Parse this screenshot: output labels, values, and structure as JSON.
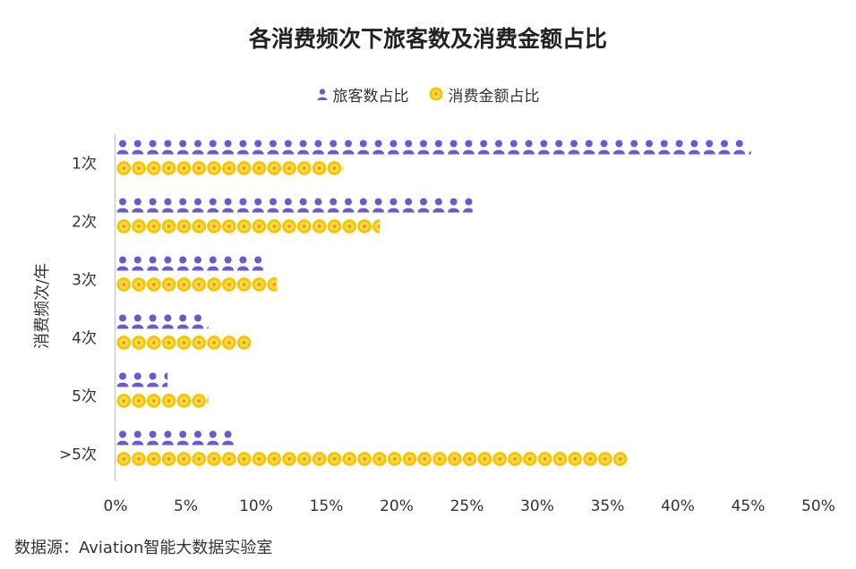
{
  "chart_data": {
    "type": "bar",
    "orientation": "horizontal",
    "style": "pictograph",
    "title": "各消费频次下旅客数及消费金额占比",
    "ylabel": "消费频次/年",
    "xlabel": "",
    "categories": [
      "1次",
      "2次",
      "3次",
      "4次",
      "5次",
      ">5次"
    ],
    "series": [
      {
        "name": "旅客数占比",
        "icon": "person-icon",
        "color": "#6a5acd",
        "values": [
          45.2,
          25.4,
          10.5,
          6.6,
          3.7,
          8.4
        ]
      },
      {
        "name": "消费金额占比",
        "icon": "coin-icon",
        "color": "#f5c400",
        "values": [
          16.2,
          18.8,
          11.5,
          9.7,
          6.6,
          36.5
        ]
      }
    ],
    "xlim": [
      0,
      50
    ],
    "xticks": [
      "0%",
      "5%",
      "10%",
      "15%",
      "20%",
      "25%",
      "30%",
      "35%",
      "40%",
      "45%",
      "50%"
    ],
    "grid": false,
    "legend_position": "top-center"
  },
  "source": "数据源：Aviation智能大数据实验室"
}
